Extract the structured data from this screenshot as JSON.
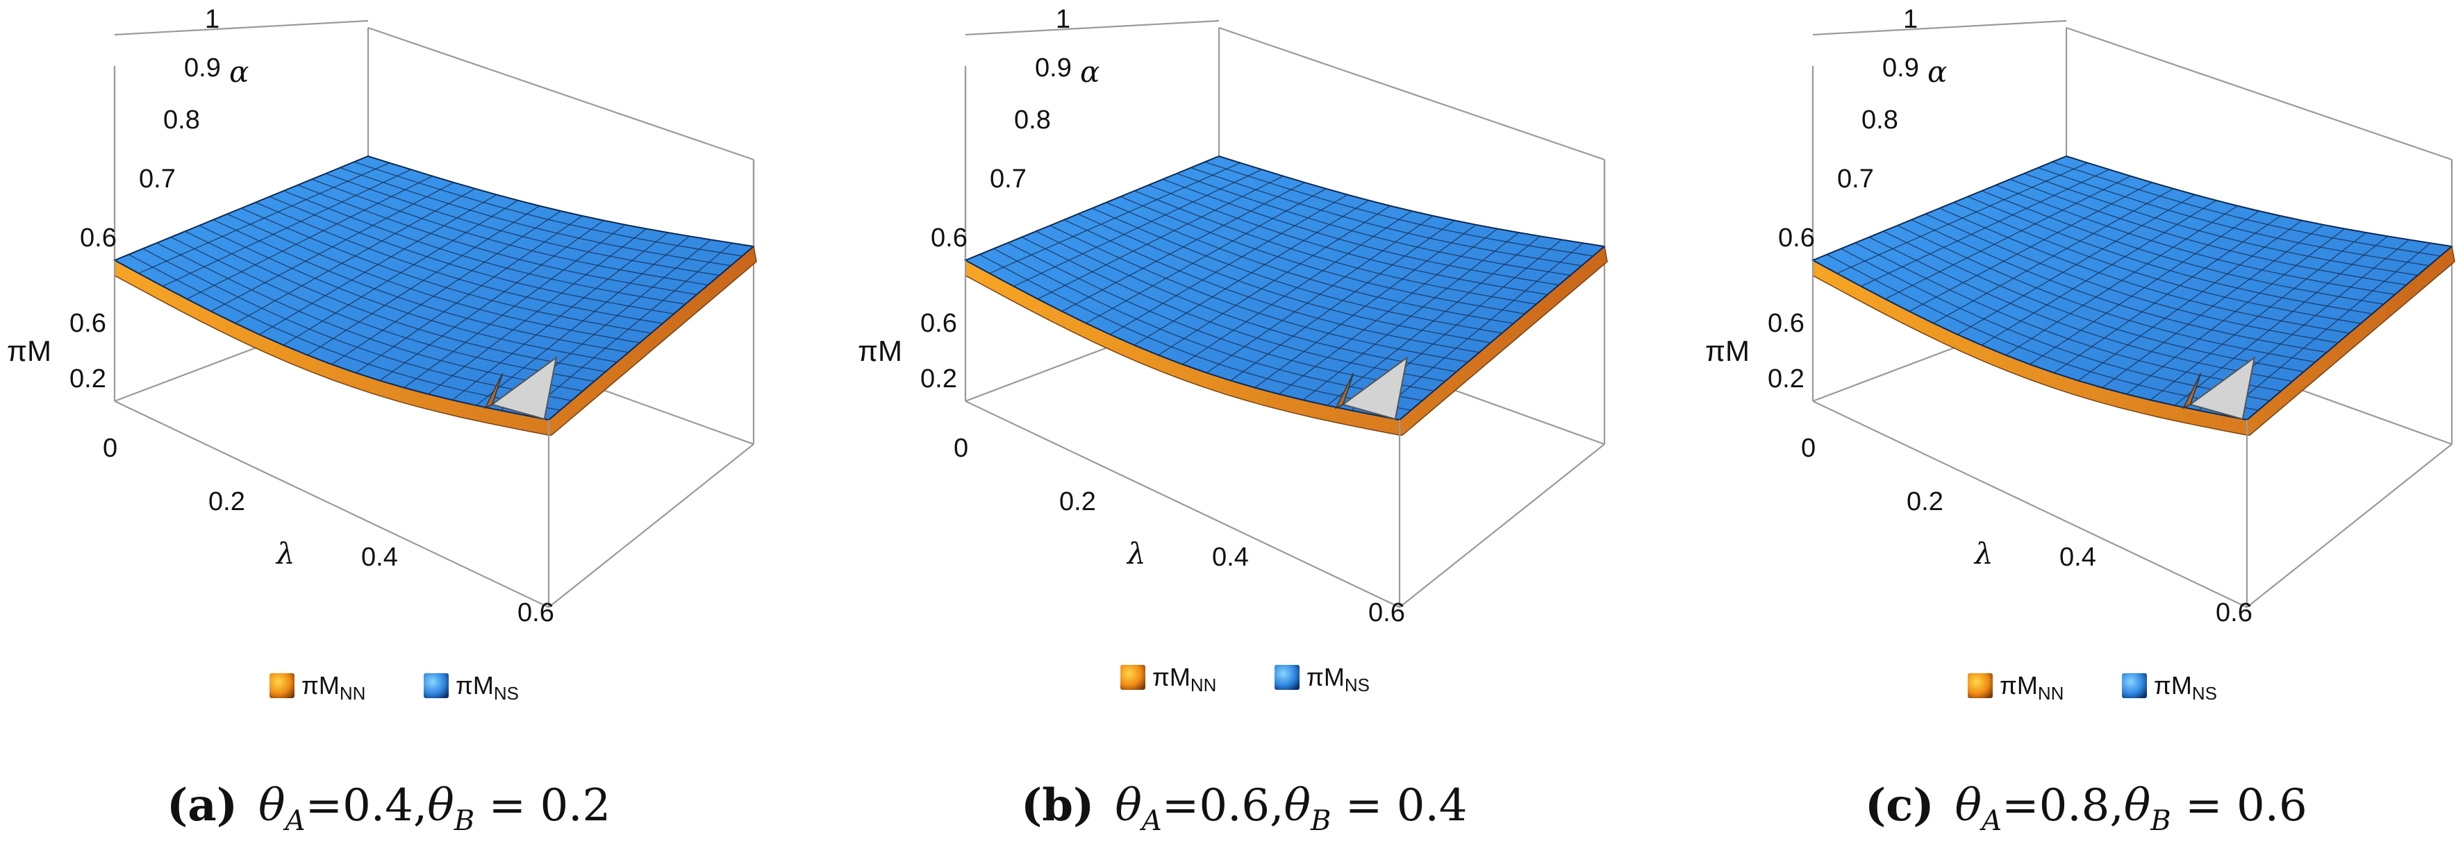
{
  "chart_data": [
    {
      "type": "surface3d",
      "panel": "(a)",
      "caption": {
        "label": "(a)",
        "theta_A": "0.4",
        "theta_B": "0.2"
      },
      "xlabel": "λ",
      "ylabel": "α",
      "zlabel": "πM",
      "x_ticks": [
        "0",
        "0.2",
        "0.4",
        "0.6"
      ],
      "y_ticks": [
        "0.6",
        "0.7",
        "0.8",
        "0.9",
        "1"
      ],
      "z_ticks": [
        "0",
        "0.2",
        "0.6"
      ],
      "xlim": [
        0,
        0.6
      ],
      "ylim": [
        0.5,
        1
      ],
      "series": [
        {
          "name": "πM_NN",
          "legend_main": "πM",
          "legend_sub": "NN",
          "color": "#f39a1c"
        },
        {
          "name": "πM_NS",
          "legend_main": "πM",
          "legend_sub": "NS",
          "color": "#3a8fe6"
        }
      ]
    },
    {
      "type": "surface3d",
      "panel": "(b)",
      "caption": {
        "label": "(b)",
        "theta_A": "0.6",
        "theta_B": "0.4"
      },
      "xlabel": "λ",
      "ylabel": "α",
      "zlabel": "πM",
      "x_ticks": [
        "0",
        "0.2",
        "0.4",
        "0.6"
      ],
      "y_ticks": [
        "0.6",
        "0.7",
        "0.8",
        "0.9",
        "1"
      ],
      "z_ticks": [
        "0",
        "0.2",
        "0.6"
      ],
      "xlim": [
        0,
        0.6
      ],
      "ylim": [
        0.5,
        1
      ],
      "series": [
        {
          "name": "πM_NN",
          "legend_main": "πM",
          "legend_sub": "NN",
          "color": "#f39a1c"
        },
        {
          "name": "πM_NS",
          "legend_main": "πM",
          "legend_sub": "NS",
          "color": "#3a8fe6"
        }
      ]
    },
    {
      "type": "surface3d",
      "panel": "(c)",
      "caption": {
        "label": "(c)",
        "theta_A": "0.8",
        "theta_B": "0.6"
      },
      "xlabel": "λ",
      "ylabel": "α",
      "zlabel": "πM",
      "x_ticks": [
        "0",
        "0.2",
        "0.4",
        "0.6"
      ],
      "y_ticks": [
        "0.6",
        "0.7",
        "0.8",
        "0.9",
        "1"
      ],
      "z_ticks": [
        "0",
        "0.2",
        "0.6"
      ],
      "xlim": [
        0,
        0.6
      ],
      "ylim": [
        0.5,
        1
      ],
      "series": [
        {
          "name": "πM_NN",
          "legend_main": "πM",
          "legend_sub": "NN",
          "color": "#f39a1c"
        },
        {
          "name": "πM_NS",
          "legend_main": "πM",
          "legend_sub": "NS",
          "color": "#3a8fe6"
        }
      ]
    }
  ]
}
